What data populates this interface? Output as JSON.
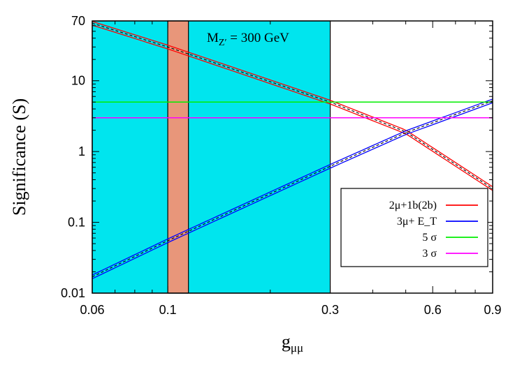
{
  "chart_data": {
    "type": "line",
    "title": "",
    "xlabel": "g",
    "xlabel_sub": "μμ",
    "ylabel": "Significance (S)",
    "x_scale": "log",
    "y_scale": "log",
    "xlim": [
      0.06,
      0.9
    ],
    "ylim": [
      0.01,
      70
    ],
    "x_ticks": [
      {
        "value": 0.06,
        "label": "0.06"
      },
      {
        "value": 0.1,
        "label": "0.1"
      },
      {
        "value": 0.3,
        "label": "0.3"
      },
      {
        "value": 0.6,
        "label": "0.6"
      },
      {
        "value": 0.9,
        "label": "0.9"
      }
    ],
    "y_ticks": [
      {
        "value": 0.01,
        "label": "0.01"
      },
      {
        "value": 0.1,
        "label": "0.1"
      },
      {
        "value": 1,
        "label": "1"
      },
      {
        "value": 10,
        "label": "10"
      },
      {
        "value": 70,
        "label": "70"
      }
    ],
    "annotation": {
      "main": "M",
      "sub": "Z′",
      "rest": " = 300 GeV"
    },
    "shaded_regions": [
      {
        "x": [
          0.06,
          0.3
        ],
        "color": "#00e5ee"
      },
      {
        "x": [
          0.1,
          0.115
        ],
        "color": "#e8967a"
      }
    ],
    "series": [
      {
        "name": "2μ+1b(2b)",
        "color": "#ff0000",
        "kind": "band",
        "x": [
          0.06,
          0.1,
          0.3,
          0.5,
          0.9
        ],
        "y": [
          65,
          30,
          5.0,
          1.9,
          0.3
        ]
      },
      {
        "name": "3μ+ E_T",
        "color": "#0000ff",
        "kind": "band",
        "x": [
          0.06,
          0.1,
          0.3,
          0.5,
          0.9
        ],
        "y": [
          0.017,
          0.055,
          0.62,
          1.85,
          5.2
        ]
      },
      {
        "name": "5 σ",
        "color": "#00ee00",
        "kind": "line",
        "x": [
          0.06,
          0.9
        ],
        "y": [
          5,
          5
        ]
      },
      {
        "name": "3 σ",
        "color": "#ff00ff",
        "kind": "line",
        "x": [
          0.06,
          0.9
        ],
        "y": [
          3,
          3
        ]
      }
    ],
    "legend": {
      "position": "bottom-right"
    }
  }
}
